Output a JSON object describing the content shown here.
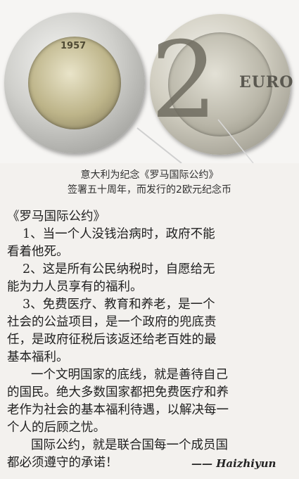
{
  "coins": {
    "year_text": "1957"
  },
  "caption": {
    "line1": "意大利为纪念《罗马国际公约》",
    "line2": "签署五十周年，而发行的2欧元纪念币"
  },
  "text": {
    "title": "《罗马国际公约》",
    "lines": [
      "1、当一个人没钱治病时，政府不能",
      "看着他死。",
      "2、这是所有公民纳税时，自愿给无",
      "能为力人员享有的福利。",
      "3、免费医疗、教育和养老，是一个",
      "社会的公益项目，是一个政府的兜底责",
      "任，是政府征税后该返还给老百姓的最",
      "基本福利。",
      "一个文明国家的底线，就是善待自己",
      "的国民。绝大多数国家都把免费医疗和养",
      "老作为社会的基本福利待遇，以解决每一",
      "个人的后顾之忧。",
      "国际公约，就是联合国每一个成员国",
      "都必须遵守的承诺！"
    ],
    "signature": "—— Haizhiyun"
  }
}
